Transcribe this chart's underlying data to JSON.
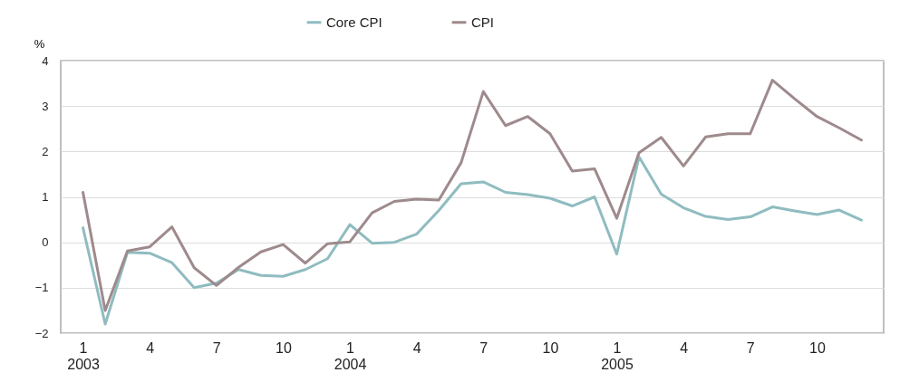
{
  "chart_data": {
    "type": "line",
    "ylabel": "%",
    "categories": [
      "1\n2003",
      null,
      null,
      "4",
      null,
      null,
      "7",
      null,
      null,
      "10",
      null,
      null,
      "1\n2004",
      null,
      null,
      "4",
      null,
      null,
      "7",
      null,
      null,
      "10",
      null,
      null,
      "1\n2005",
      null,
      null,
      "4",
      null,
      null,
      "7",
      null,
      null,
      "10",
      null,
      null
    ],
    "series": [
      {
        "name": "Core CPI",
        "color": "#8fbcc0",
        "values": [
          0.32,
          -1.8,
          -0.22,
          -0.24,
          -0.45,
          -1.0,
          -0.9,
          -0.6,
          -0.73,
          -0.75,
          -0.6,
          -0.36,
          0.39,
          -0.02,
          0.0,
          0.18,
          0.7,
          1.29,
          1.33,
          1.1,
          1.05,
          0.97,
          0.8,
          1.0,
          -0.26,
          1.88,
          1.06,
          0.76,
          0.57,
          0.5,
          0.56,
          0.78,
          0.69,
          0.61,
          0.71,
          0.49
        ]
      },
      {
        "name": "CPI",
        "color": "#9e8a8c",
        "values": [
          1.1,
          -1.5,
          -0.19,
          -0.1,
          0.34,
          -0.56,
          -0.95,
          -0.55,
          -0.21,
          -0.05,
          -0.46,
          -0.03,
          0.01,
          0.65,
          0.9,
          0.95,
          0.93,
          1.75,
          3.32,
          2.57,
          2.77,
          2.39,
          1.57,
          1.62,
          0.53,
          1.97,
          2.31,
          1.68,
          2.32,
          2.39,
          2.39,
          3.57,
          3.16,
          2.77,
          2.52,
          2.25
        ]
      }
    ],
    "ylim": [
      -2,
      4
    ],
    "yticks": [
      -2,
      -1,
      0,
      1,
      2,
      3,
      4
    ],
    "grid": "y",
    "legend": "top",
    "line_style": "solid",
    "marker": "none"
  }
}
